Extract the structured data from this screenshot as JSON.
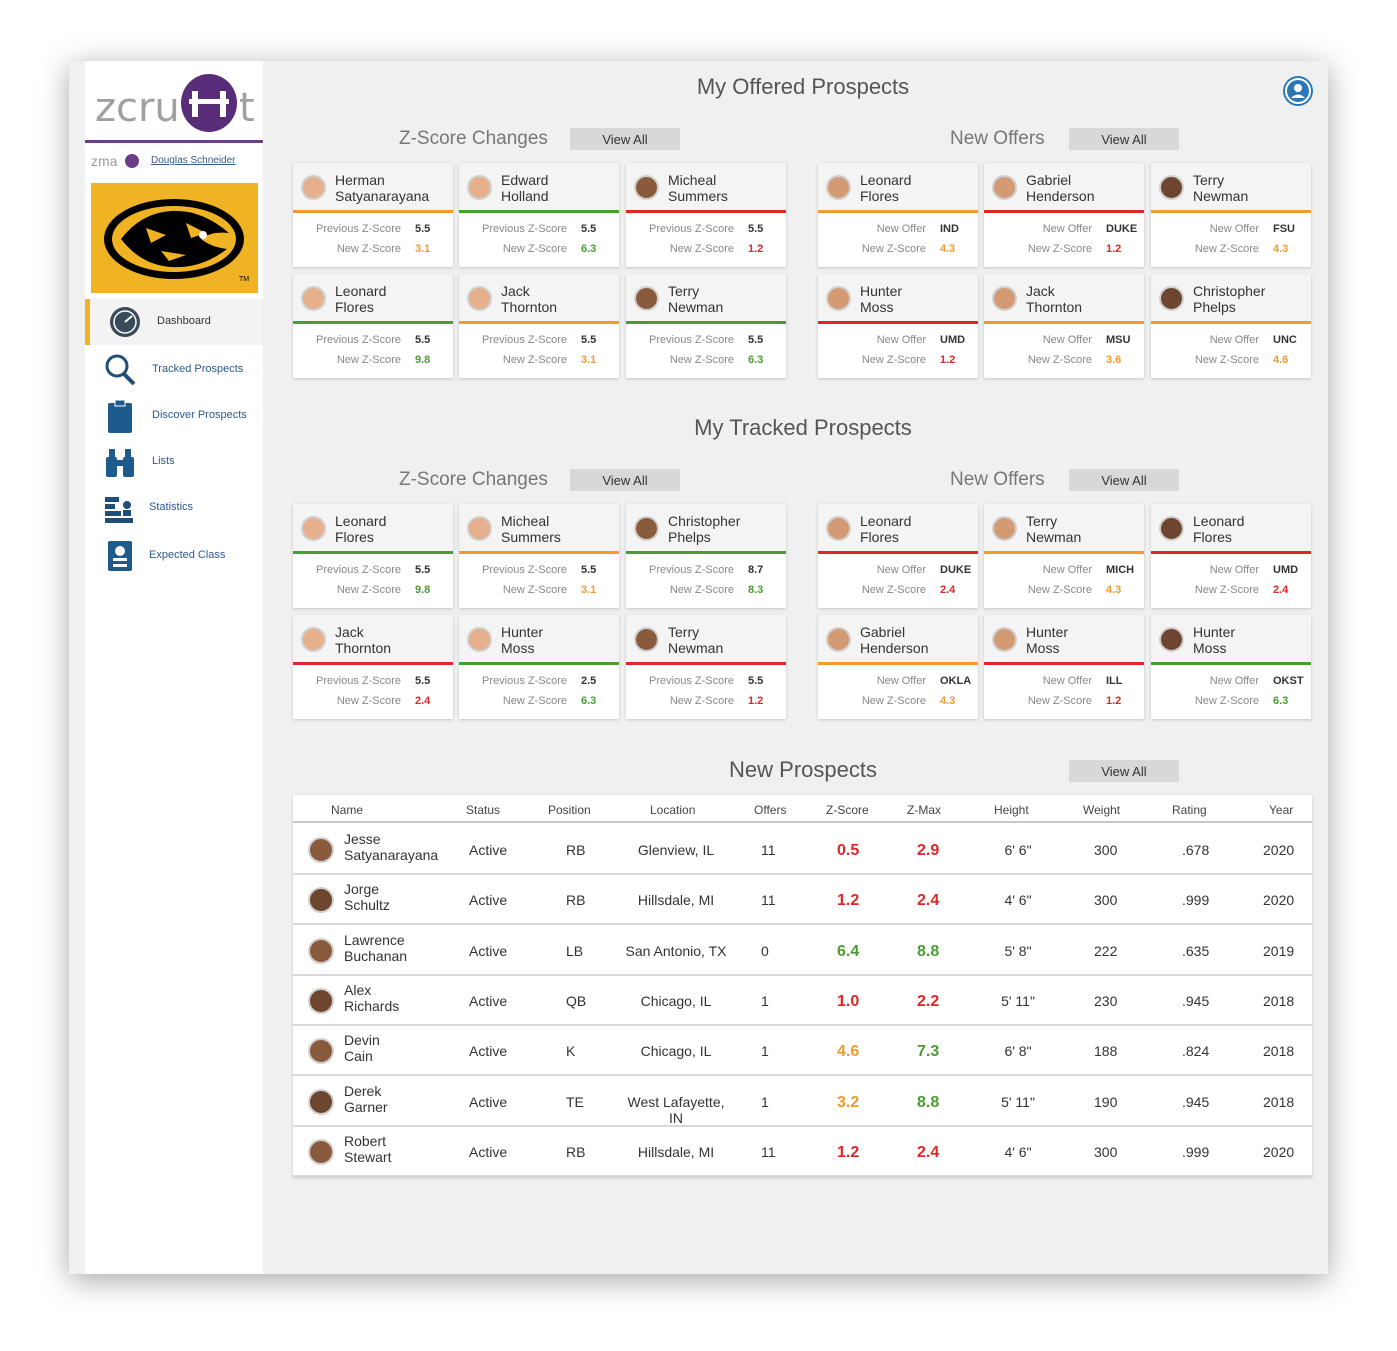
{
  "colors": {
    "accent": "#f0b323",
    "brand": "#6a3d86",
    "link": "#2c5a8c",
    "good": "#4a9e2f",
    "warn": "#f29a2e",
    "bad": "#e02626"
  },
  "sidebar": {
    "logo_text": "zcruit",
    "zma": "zma",
    "user": "Douglas Schneider",
    "nav": [
      {
        "label": "Dashboard",
        "icon": "dashboard-gauge-icon"
      },
      {
        "label": "Tracked Prospects",
        "icon": "magnifier-icon"
      },
      {
        "label": "Discover Prospects",
        "icon": "clipboard-icon"
      },
      {
        "label": "Lists",
        "icon": "binoculars-icon"
      },
      {
        "label": "Statistics",
        "icon": "statistics-icon"
      },
      {
        "label": "Expected Class",
        "icon": "id-badge-icon"
      }
    ]
  },
  "offered": {
    "title": "My Offered Prospects",
    "zscore": {
      "title": "Z-Score Changes",
      "view_all": "View All",
      "cards": [
        {
          "first": "Herman",
          "last": "Satyanarayana",
          "prev": "5.5",
          "new": "3.1",
          "color": "orange"
        },
        {
          "first": "Edward",
          "last": "Holland",
          "prev": "5.5",
          "new": "6.3",
          "color": "green"
        },
        {
          "first": "Micheal",
          "last": "Summers",
          "prev": "5.5",
          "new": "1.2",
          "color": "red"
        },
        {
          "first": "Leonard",
          "last": "Flores",
          "prev": "5.5",
          "new": "9.8",
          "color": "green"
        },
        {
          "first": "Jack",
          "last": "Thornton",
          "prev": "5.5",
          "new": "3.1",
          "color": "orange"
        },
        {
          "first": "Terry",
          "last": "Newman",
          "prev": "5.5",
          "new": "6.3",
          "color": "green"
        }
      ]
    },
    "offers": {
      "title": "New Offers",
      "view_all": "View All",
      "cards": [
        {
          "first": "Leonard",
          "last": "Flores",
          "offer": "IND",
          "new": "4.3",
          "color": "orange"
        },
        {
          "first": "Gabriel",
          "last": "Henderson",
          "offer": "DUKE",
          "new": "1.2",
          "color": "red"
        },
        {
          "first": "Terry",
          "last": "Newman",
          "offer": "FSU",
          "new": "4.3",
          "color": "orange"
        },
        {
          "first": "Hunter",
          "last": "Moss",
          "offer": "UMD",
          "new": "1.2",
          "color": "red"
        },
        {
          "first": "Jack",
          "last": "Thornton",
          "offer": "MSU",
          "new": "3.6",
          "color": "orange"
        },
        {
          "first": "Christopher",
          "last": "Phelps",
          "offer": "UNC",
          "new": "4.6",
          "color": "orange"
        }
      ]
    }
  },
  "tracked": {
    "title": "My Tracked Prospects",
    "zscore": {
      "title": "Z-Score Changes",
      "view_all": "View All",
      "cards": [
        {
          "first": "Leonard",
          "last": "Flores",
          "prev": "5.5",
          "new": "9.8",
          "color": "green"
        },
        {
          "first": "Micheal",
          "last": "Summers",
          "prev": "5.5",
          "new": "3.1",
          "color": "orange"
        },
        {
          "first": "Christopher",
          "last": "Phelps",
          "prev": "8.7",
          "new": "8.3",
          "color": "green"
        },
        {
          "first": "Jack",
          "last": "Thornton",
          "prev": "5.5",
          "new": "2.4",
          "color": "red"
        },
        {
          "first": "Hunter",
          "last": "Moss",
          "prev": "2.5",
          "new": "6.3",
          "color": "green"
        },
        {
          "first": "Terry",
          "last": "Newman",
          "prev": "5.5",
          "new": "1.2",
          "color": "red"
        }
      ]
    },
    "offers": {
      "title": "New Offers",
      "view_all": "View All",
      "cards": [
        {
          "first": "Leonard",
          "last": "Flores",
          "offer": "DUKE",
          "new": "2.4",
          "color": "red"
        },
        {
          "first": "Terry",
          "last": "Newman",
          "offer": "MICH",
          "new": "4.3",
          "color": "orange"
        },
        {
          "first": "Leonard",
          "last": "Flores",
          "offer": "UMD",
          "new": "2.4",
          "color": "red"
        },
        {
          "first": "Gabriel",
          "last": "Henderson",
          "offer": "OKLA",
          "new": "4.3",
          "color": "orange"
        },
        {
          "first": "Hunter",
          "last": "Moss",
          "offer": "ILL",
          "new": "1.2",
          "color": "red"
        },
        {
          "first": "Hunter",
          "last": "Moss",
          "offer": "OKST",
          "new": "6.3",
          "color": "green"
        }
      ]
    }
  },
  "labels": {
    "previous": "Previous Z-Score",
    "new_z": "New Z-Score",
    "new_offer": "New  Offer"
  },
  "new_prospects": {
    "title": "New Prospects",
    "view_all": "View All",
    "columns": [
      "Name",
      "Status",
      "Position",
      "Location",
      "Offers",
      "Z-Score",
      "Z-Max",
      "Height",
      "Weight",
      "Rating",
      "Year"
    ],
    "rows": [
      {
        "first": "Jesse",
        "last": "Satyanarayana",
        "status": "Active",
        "pos": "RB",
        "loc": "Glenview, IL",
        "offers": "11",
        "z": "0.5",
        "zc": "red",
        "zmax": "2.9",
        "zmc": "red",
        "height": "6' 6\"",
        "weight": "300",
        "rating": ".678",
        "year": "2020"
      },
      {
        "first": "Jorge",
        "last": "Schultz",
        "status": "Active",
        "pos": "RB",
        "loc": "Hillsdale, MI",
        "offers": "11",
        "z": "1.2",
        "zc": "red",
        "zmax": "2.4",
        "zmc": "red",
        "height": "4' 6\"",
        "weight": "300",
        "rating": ".999",
        "year": "2020"
      },
      {
        "first": "Lawrence",
        "last": "Buchanan",
        "status": "Active",
        "pos": "LB",
        "loc": "San Antonio, TX",
        "offers": "0",
        "z": "6.4",
        "zc": "green",
        "zmax": "8.8",
        "zmc": "green",
        "height": "5' 8\"",
        "weight": "222",
        "rating": ".635",
        "year": "2019"
      },
      {
        "first": "Alex",
        "last": "Richards",
        "status": "Active",
        "pos": "QB",
        "loc": "Chicago, IL",
        "offers": "1",
        "z": "1.0",
        "zc": "red",
        "zmax": "2.2",
        "zmc": "red",
        "height": "5' 11\"",
        "weight": "230",
        "rating": ".945",
        "year": "2018"
      },
      {
        "first": "Devin",
        "last": "Cain",
        "status": "Active",
        "pos": "K",
        "loc": "Chicago, IL",
        "offers": "1",
        "z": "4.6",
        "zc": "orange",
        "zmax": "7.3",
        "zmc": "green",
        "height": "6' 8\"",
        "weight": "188",
        "rating": ".824",
        "year": "2018"
      },
      {
        "first": "Derek",
        "last": "Garner",
        "status": "Active",
        "pos": "TE",
        "loc": "West Lafayette, IN",
        "offers": "1",
        "z": "3.2",
        "zc": "orange",
        "zmax": "8.8",
        "zmc": "green",
        "height": "5' 11\"",
        "weight": "190",
        "rating": ".945",
        "year": "2018"
      },
      {
        "first": "Robert",
        "last": "Stewart",
        "status": "Active",
        "pos": "RB",
        "loc": "Hillsdale, MI",
        "offers": "11",
        "z": "1.2",
        "zc": "red",
        "zmax": "2.4",
        "zmc": "red",
        "height": "4' 6\"",
        "weight": "300",
        "rating": ".999",
        "year": "2020"
      }
    ]
  }
}
